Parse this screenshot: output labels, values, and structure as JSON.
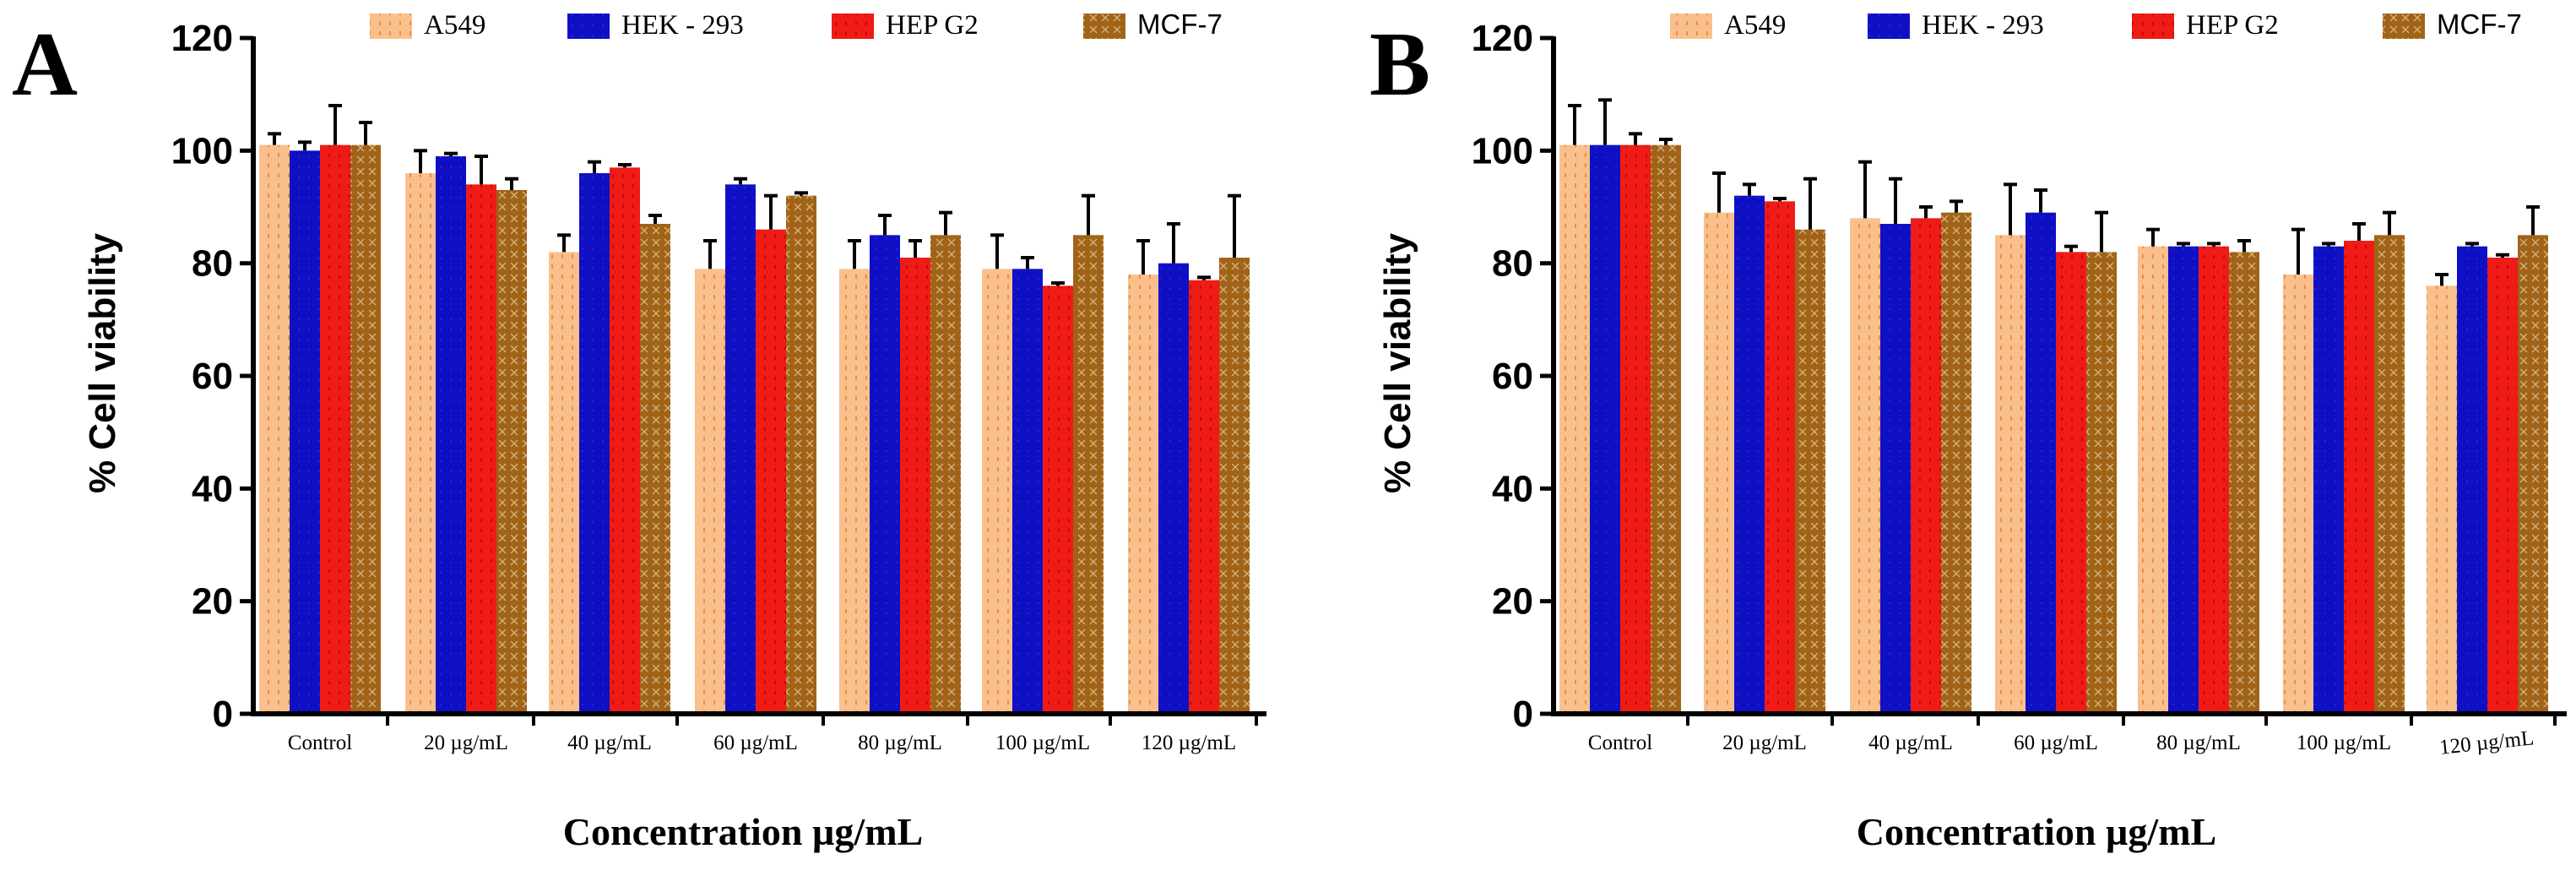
{
  "colors": {
    "A549": "#f9c08e",
    "HEK-293": "#0f10c4",
    "HEP G2": "#ef1b16",
    "MCF-7": "#a06317",
    "axis": "#000000"
  },
  "chart_data": [
    {
      "type": "bar",
      "panel": "A",
      "title": "",
      "xlabel": "Concentration µg/mL",
      "ylabel": "% Cell viability",
      "ylim": [
        0,
        120
      ],
      "yticks": [
        0,
        20,
        40,
        60,
        80,
        100,
        120
      ],
      "categories": [
        "Control",
        "20 µg/mL",
        "40 µg/mL",
        "60 µg/mL",
        "80 µg/mL",
        "100 µg/mL",
        "120 µg/mL"
      ],
      "legend_position": "top",
      "series": [
        {
          "name": "A549",
          "legend_label": "A549",
          "values": [
            101,
            96,
            82,
            79,
            79,
            79,
            78
          ],
          "errors": [
            2,
            4,
            3,
            5,
            5,
            6,
            6
          ]
        },
        {
          "name": "HEK-293",
          "legend_label": "HEK - 293",
          "values": [
            100,
            99,
            96,
            94,
            85,
            79,
            80
          ],
          "errors": [
            1.5,
            0.5,
            2,
            1,
            3.5,
            2,
            7
          ]
        },
        {
          "name": "HEP G2",
          "legend_label": "HEP G2",
          "values": [
            101,
            94,
            97,
            86,
            81,
            76,
            77
          ],
          "errors": [
            7,
            5,
            0.5,
            6,
            3,
            0.5,
            0.5
          ]
        },
        {
          "name": "MCF-7",
          "legend_label": "MCF-7",
          "values": [
            101,
            93,
            87,
            92,
            85,
            85,
            81
          ],
          "errors": [
            4,
            2,
            1.5,
            0.5,
            4,
            7,
            11
          ]
        }
      ]
    },
    {
      "type": "bar",
      "panel": "B",
      "title": "",
      "xlabel": "Concentration µg/mL",
      "ylabel": "% Cell viability",
      "ylim": [
        0,
        120
      ],
      "yticks": [
        0,
        20,
        40,
        60,
        80,
        100,
        120
      ],
      "categories": [
        "Control",
        "20 µg/mL",
        "40 µg/mL",
        "60 µg/mL",
        "80 µg/mL",
        "100 µg/mL",
        "120 µg/mL"
      ],
      "legend_position": "top",
      "series": [
        {
          "name": "A549",
          "legend_label": "A549",
          "values": [
            101,
            89,
            88,
            85,
            83,
            78,
            76
          ],
          "errors": [
            7,
            7,
            10,
            9,
            3,
            8,
            2
          ]
        },
        {
          "name": "HEK-293",
          "legend_label": "HEK - 293",
          "values": [
            101,
            92,
            87,
            89,
            83,
            83,
            83
          ],
          "errors": [
            8,
            2,
            8,
            4,
            0.5,
            0.5,
            0.5
          ]
        },
        {
          "name": "HEP G2",
          "legend_label": "HEP G2",
          "values": [
            101,
            91,
            88,
            82,
            83,
            84,
            81
          ],
          "errors": [
            2,
            0.5,
            2,
            1,
            0.5,
            3,
            0.5
          ]
        },
        {
          "name": "MCF-7",
          "legend_label": "MCF-7",
          "values": [
            101,
            86,
            89,
            82,
            82,
            85,
            85
          ],
          "errors": [
            1,
            9,
            2,
            7,
            2,
            4,
            5
          ]
        }
      ]
    }
  ]
}
